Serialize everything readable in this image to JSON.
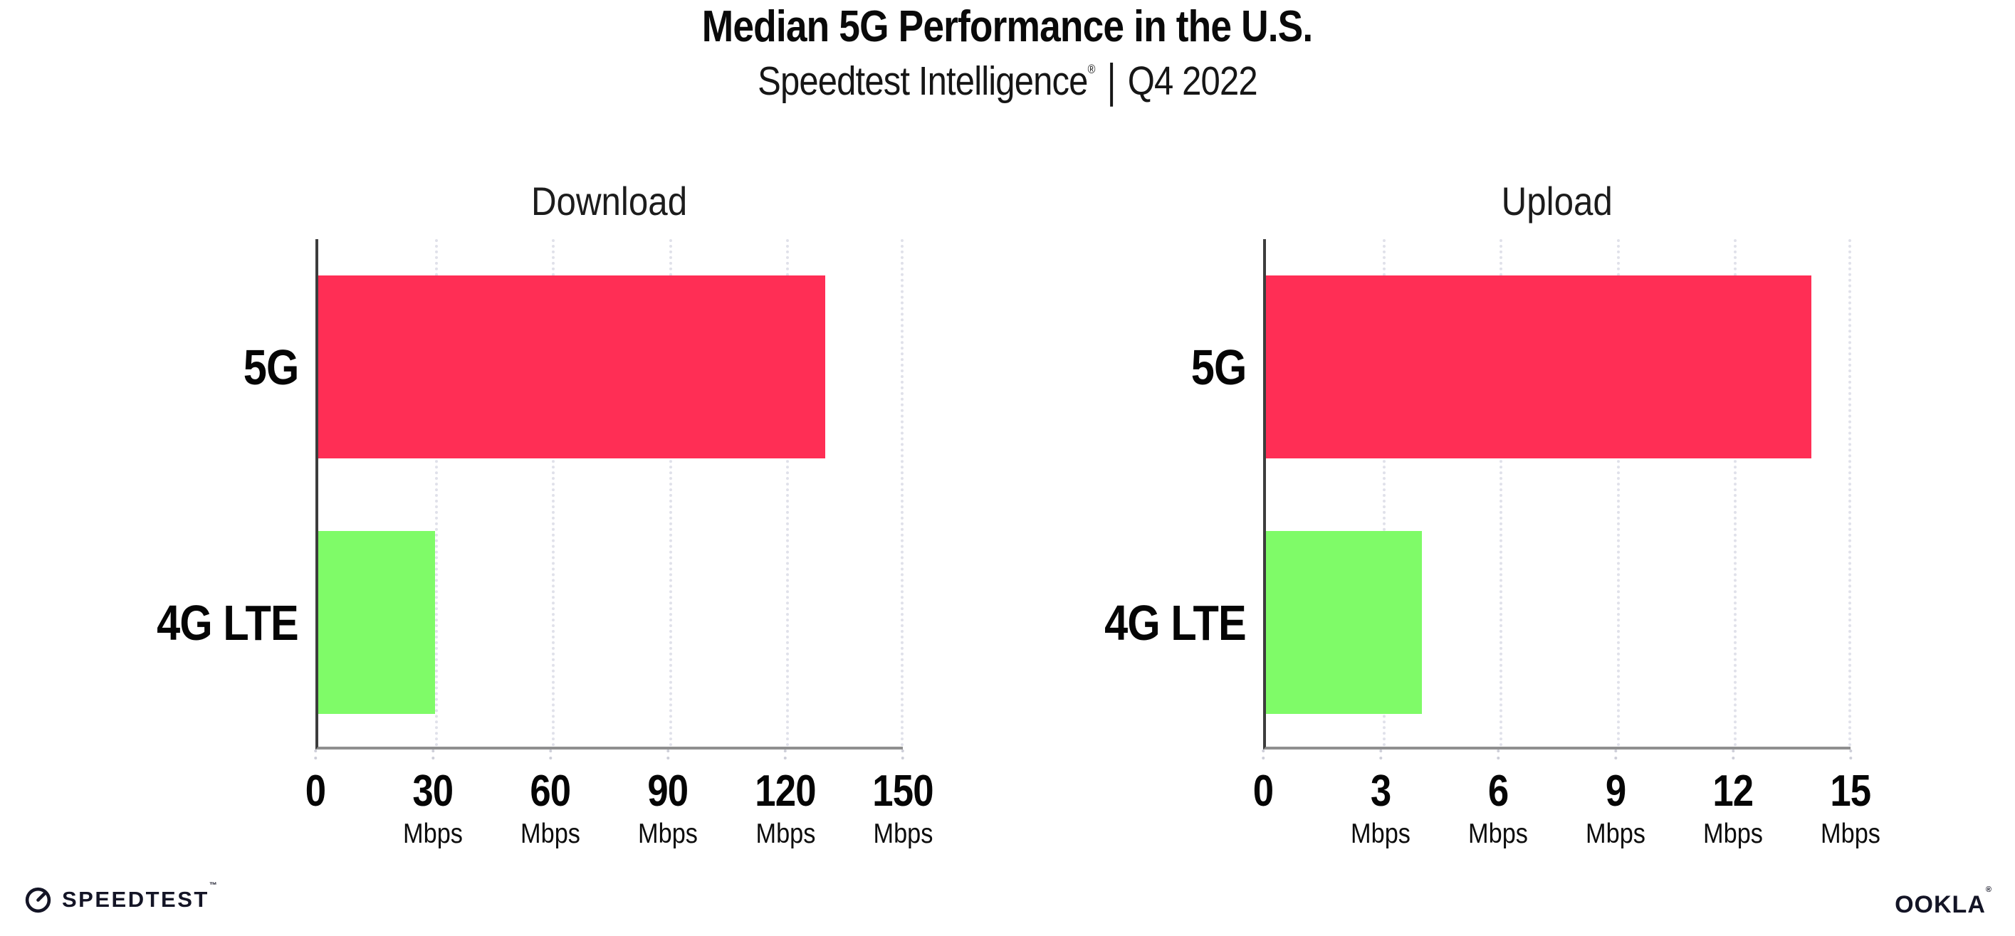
{
  "header": {
    "title": "Median 5G Performance in the U.S.",
    "subtitle_product": "Speedtest Intelligence",
    "subtitle_trademark": "®",
    "subtitle_separator": "|",
    "subtitle_period": "Q4 2022"
  },
  "chart_data": [
    {
      "type": "bar",
      "orientation": "horizontal",
      "title": "Download",
      "categories": [
        "5G",
        "4G LTE"
      ],
      "values": [
        130,
        30
      ],
      "unit": "Mbps",
      "xlim": [
        0,
        150
      ],
      "xticks": [
        0,
        30,
        60,
        90,
        120,
        150
      ],
      "bar_colors": [
        "#ff2e55",
        "#7ffb68"
      ],
      "grid": "vertical-dotted",
      "legend": "none"
    },
    {
      "type": "bar",
      "orientation": "horizontal",
      "title": "Upload",
      "categories": [
        "5G",
        "4G LTE"
      ],
      "values": [
        14,
        4
      ],
      "unit": "Mbps",
      "xlim": [
        0,
        15
      ],
      "xticks": [
        0,
        3,
        6,
        9,
        12,
        15
      ],
      "bar_colors": [
        "#ff2e55",
        "#7ffb68"
      ],
      "grid": "vertical-dotted",
      "legend": "none"
    }
  ],
  "footer": {
    "speedtest_wordmark": "SPEEDTEST",
    "speedtest_trademark": "™",
    "ookla_wordmark": "OOKLA",
    "ookla_trademark": "®"
  },
  "colors": {
    "bar_5g": "#ff2e55",
    "bar_4g_lte": "#7ffb68",
    "gridline": "#e0e1ea",
    "axis_x": "#8f8f8f",
    "axis_y": "#3d3d3d",
    "text": "#111111",
    "logo": "#141526",
    "background": "#ffffff"
  }
}
